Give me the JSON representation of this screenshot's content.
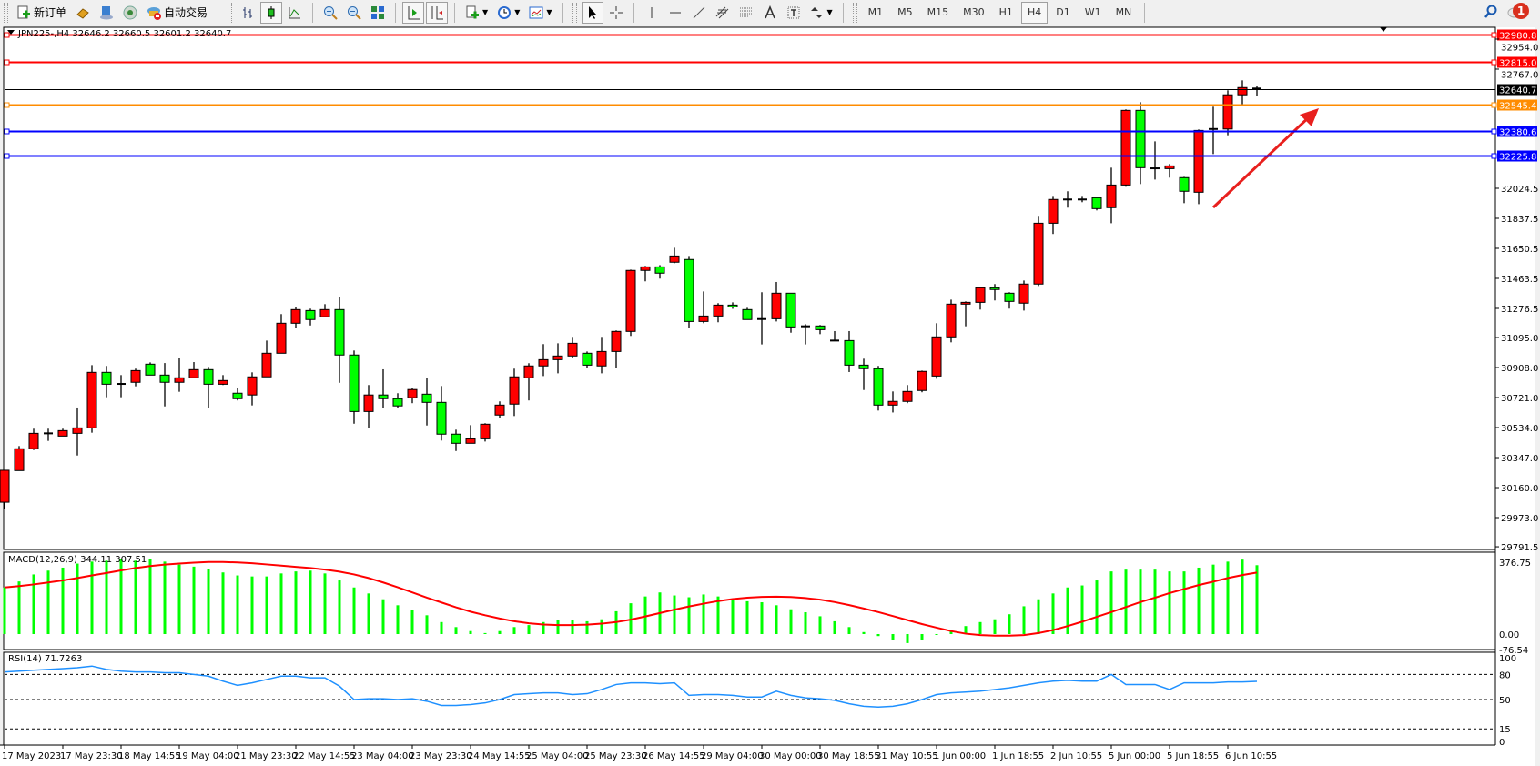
{
  "toolbar": {
    "new_order": "新订单",
    "auto_trading": "自动交易",
    "timeframes": [
      "M1",
      "M5",
      "M15",
      "M30",
      "H1",
      "H4",
      "D1",
      "W1",
      "MN"
    ],
    "active_timeframe": "H4",
    "notification_count": "1"
  },
  "chart": {
    "header": "JPN225-,H4  32646.2 32660.5 32601.2 32640.7",
    "price_ticks": [
      "32954.0",
      "32767.0",
      "32024.5",
      "31837.5",
      "31650.5",
      "31463.5",
      "31276.5",
      "31095.0",
      "30908.0",
      "30721.0",
      "30534.0",
      "30347.0",
      "30160.0",
      "29973.0",
      "29791.5"
    ],
    "levels": [
      {
        "price": "32980.8",
        "color": "#ff0000"
      },
      {
        "price": "32815.0",
        "color": "#ff0000"
      },
      {
        "price": "32640.7",
        "color": "#000000"
      },
      {
        "price": "32545.4",
        "color": "#ff8c00"
      },
      {
        "price": "32380.6",
        "color": "#0000ff"
      },
      {
        "price": "32225.8",
        "color": "#0000ff"
      }
    ],
    "annotation_arrow_color": "#e8201e"
  },
  "chart_data": {
    "type": "candlestick",
    "ohlc_order": [
      "open",
      "high",
      "low",
      "close"
    ],
    "up_color": "#ff0000",
    "down_color": "#00ff00",
    "ylim": [
      29791.5,
      32980.8
    ],
    "candles": [
      [
        30069,
        30268,
        30024,
        30268
      ],
      [
        30266,
        30419,
        30266,
        30402
      ],
      [
        30402,
        30527,
        30394,
        30498
      ],
      [
        30498,
        30527,
        30451,
        30498
      ],
      [
        30481,
        30527,
        30481,
        30515
      ],
      [
        30498,
        30659,
        30360,
        30532
      ],
      [
        30532,
        30923,
        30502,
        30878
      ],
      [
        30878,
        30918,
        30723,
        30804
      ],
      [
        30806,
        30861,
        30723,
        30806
      ],
      [
        30816,
        30901,
        30791,
        30889
      ],
      [
        30929,
        30940,
        30861,
        30861
      ],
      [
        30861,
        30936,
        30666,
        30816
      ],
      [
        30816,
        30970,
        30757,
        30844
      ],
      [
        30844,
        30942,
        30844,
        30895
      ],
      [
        30895,
        30912,
        30655,
        30804
      ],
      [
        30804,
        30861,
        30799,
        30827
      ],
      [
        30748,
        30782,
        30703,
        30714
      ],
      [
        30737,
        30878,
        30672,
        30850
      ],
      [
        30850,
        31076,
        30850,
        30997
      ],
      [
        30997,
        31241,
        30997,
        31184
      ],
      [
        31184,
        31286,
        31154,
        31269
      ],
      [
        31263,
        31275,
        31170,
        31207
      ],
      [
        31224,
        31303,
        31224,
        31269
      ],
      [
        31269,
        31348,
        30813,
        30986
      ],
      [
        30986,
        31014,
        30558,
        30634
      ],
      [
        30634,
        30799,
        30530,
        30737
      ],
      [
        30737,
        30897,
        30655,
        30714
      ],
      [
        30714,
        30748,
        30655,
        30669
      ],
      [
        30720,
        30782,
        30686,
        30771
      ],
      [
        30742,
        30844,
        30547,
        30691
      ],
      [
        30691,
        30793,
        30453,
        30493
      ],
      [
        30493,
        30521,
        30388,
        30436
      ],
      [
        30436,
        30549,
        30436,
        30464
      ],
      [
        30464,
        30561,
        30447,
        30555
      ],
      [
        30612,
        30697,
        30595,
        30674
      ],
      [
        30680,
        30901,
        30606,
        30850
      ],
      [
        30844,
        30935,
        30703,
        30918
      ],
      [
        30918,
        31054,
        30855,
        30957
      ],
      [
        30957,
        31059,
        30872,
        30980
      ],
      [
        30980,
        31099,
        30969,
        31059
      ],
      [
        30997,
        31008,
        30906,
        30923
      ],
      [
        30918,
        31099,
        30872,
        31008
      ],
      [
        31008,
        31139,
        30906,
        31133
      ],
      [
        31133,
        31518,
        31105,
        31513
      ],
      [
        31513,
        31541,
        31445,
        31535
      ],
      [
        31535,
        31546,
        31462,
        31496
      ],
      [
        31564,
        31654,
        31558,
        31603
      ],
      [
        31581,
        31603,
        31156,
        31195
      ],
      [
        31195,
        31382,
        31184,
        31229
      ],
      [
        31229,
        31309,
        31190,
        31297
      ],
      [
        31297,
        31314,
        31274,
        31286
      ],
      [
        31269,
        31280,
        31207,
        31207
      ],
      [
        31210,
        31377,
        31052,
        31210
      ],
      [
        31212,
        31441,
        31195,
        31371
      ],
      [
        31371,
        31371,
        31125,
        31161
      ],
      [
        31165,
        31178,
        31052,
        31165
      ],
      [
        31167,
        31173,
        31116,
        31144
      ],
      [
        31076,
        31135,
        31076,
        31076
      ],
      [
        31076,
        31135,
        30880,
        30923
      ],
      [
        30923,
        30963,
        30768,
        30901
      ],
      [
        30901,
        30918,
        30640,
        30674
      ],
      [
        30674,
        30759,
        30628,
        30697
      ],
      [
        30697,
        30799,
        30686,
        30759
      ],
      [
        30765,
        30889,
        30754,
        30884
      ],
      [
        30855,
        31184,
        30838,
        31099
      ],
      [
        31099,
        31331,
        31065,
        31303
      ],
      [
        31303,
        31320,
        31165,
        31314
      ],
      [
        31314,
        31405,
        31269,
        31405
      ],
      [
        31405,
        31428,
        31326,
        31394
      ],
      [
        31371,
        31377,
        31275,
        31320
      ],
      [
        31309,
        31450,
        31263,
        31428
      ],
      [
        31428,
        31853,
        31416,
        31807
      ],
      [
        31807,
        31977,
        31740,
        31955
      ],
      [
        31955,
        32006,
        31904,
        31955
      ],
      [
        31955,
        31977,
        31938,
        31955
      ],
      [
        31966,
        31966,
        31887,
        31898
      ],
      [
        31904,
        32153,
        31807,
        32045
      ],
      [
        32045,
        32516,
        32034,
        32510
      ],
      [
        32510,
        32561,
        32051,
        32153
      ],
      [
        32149,
        32317,
        32079,
        32149
      ],
      [
        32147,
        32176,
        32091,
        32164
      ],
      [
        32091,
        32096,
        31932,
        32006
      ],
      [
        32000,
        32391,
        31926,
        32385
      ],
      [
        32394,
        32533,
        32238,
        32394
      ],
      [
        32394,
        32635,
        32355,
        32607
      ],
      [
        32607,
        32697,
        32544,
        32652
      ],
      [
        32646.2,
        32660.5,
        32601.2,
        32640.7
      ]
    ]
  },
  "macd": {
    "label": "MACD(12,26,9) 344.11 307.51",
    "axis": [
      "376.75",
      "0.00",
      "-76.54"
    ],
    "ylim": [
      -76.54,
      376.75
    ],
    "histogram_color": "#00ff00",
    "signal_color": "#ff0000",
    "histogram": [
      233,
      263,
      298,
      317,
      332,
      352,
      362,
      367,
      377,
      367,
      377,
      362,
      347,
      337,
      327,
      308,
      293,
      288,
      288,
      303,
      313,
      317,
      303,
      268,
      233,
      203,
      174,
      144,
      119,
      94,
      60,
      35,
      15,
      5,
      15,
      35,
      45,
      60,
      69,
      69,
      64,
      74,
      114,
      154,
      188,
      208,
      193,
      184,
      198,
      188,
      174,
      164,
      159,
      144,
      124,
      109,
      89,
      64,
      35,
      10,
      -10,
      -30,
      -45,
      -30,
      0,
      20,
      40,
      60,
      74,
      99,
      139,
      174,
      203,
      233,
      243,
      268,
      313,
      322,
      322,
      322,
      313,
      313,
      332,
      347,
      362,
      372,
      344.11
    ],
    "signal": [
      233,
      240,
      248,
      258,
      268,
      280,
      293,
      305,
      318,
      330,
      340,
      347,
      352,
      357,
      360,
      360,
      358,
      354,
      348,
      342,
      336,
      330,
      322,
      312,
      298,
      280,
      258,
      234,
      208,
      182,
      158,
      134,
      112,
      94,
      78,
      64,
      54,
      48,
      45,
      45,
      47,
      52,
      60,
      72,
      88,
      105,
      122,
      138,
      152,
      165,
      175,
      182,
      186,
      187,
      185,
      180,
      172,
      160,
      145,
      128,
      110,
      90,
      70,
      50,
      32,
      15,
      2,
      -5,
      -8,
      -8,
      -5,
      5,
      20,
      40,
      62,
      86,
      110,
      135,
      160,
      182,
      205,
      225,
      245,
      262,
      280,
      295,
      307.51
    ]
  },
  "rsi": {
    "label": "RSI(14) 71.7263",
    "axis": [
      "100",
      "80",
      "50",
      "15",
      "0"
    ],
    "line_color": "#1e90ff",
    "values": [
      83,
      84,
      85,
      86,
      87,
      88,
      90,
      86,
      84,
      83,
      83,
      82,
      82,
      80,
      78,
      72,
      67,
      70,
      74,
      78,
      78,
      76,
      76,
      66,
      50,
      51,
      51,
      50,
      51,
      48,
      43,
      43,
      44,
      46,
      50,
      56,
      57,
      58,
      58,
      56,
      57,
      62,
      68,
      70,
      70,
      69,
      70,
      55,
      56,
      56,
      55,
      53,
      53,
      60,
      55,
      52,
      51,
      49,
      45,
      42,
      41,
      42,
      45,
      50,
      56,
      58,
      59,
      60,
      62,
      64,
      67,
      70,
      72,
      73,
      72,
      72,
      80,
      68,
      68,
      68,
      62,
      70,
      70,
      70,
      71,
      71,
      71.73
    ]
  },
  "time_axis": [
    "17 May 2023",
    "17 May 23:30",
    "18 May 14:55",
    "19 May 04:00",
    "21 May 23:30",
    "22 May 14:55",
    "23 May 04:00",
    "23 May 23:30",
    "24 May 14:55",
    "25 May 04:00",
    "25 May 23:30",
    "26 May 14:55",
    "29 May 04:00",
    "30 May 00:00",
    "30 May 18:55",
    "31 May 10:55",
    "1 Jun 00:00",
    "1 Jun 18:55",
    "2 Jun 10:55",
    "5 Jun 00:00",
    "5 Jun 18:55",
    "6 Jun 10:55"
  ]
}
